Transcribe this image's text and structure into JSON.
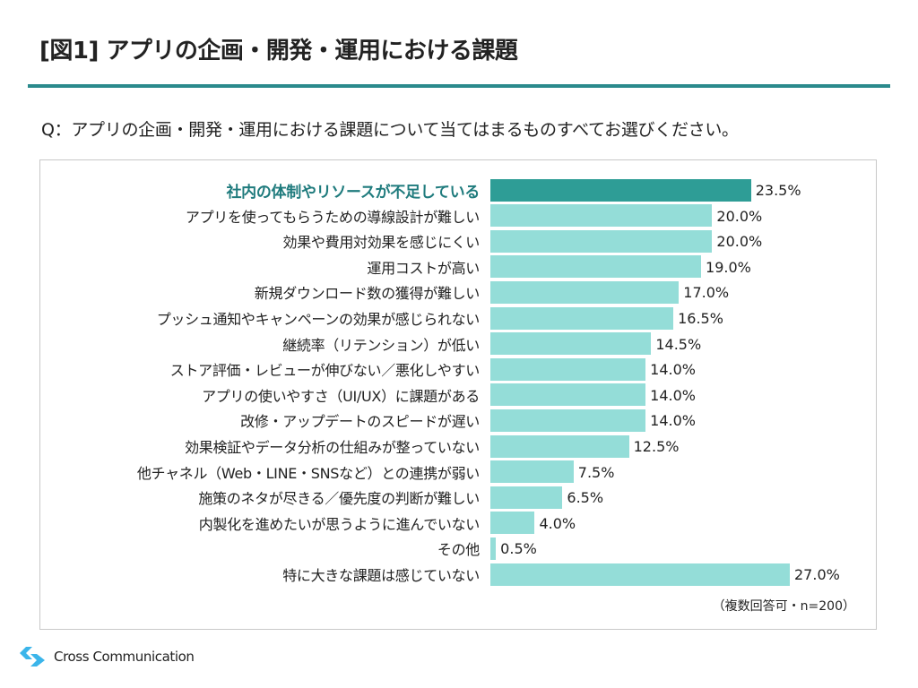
{
  "title": "[図1] アプリの企画・開発・運用における課題",
  "question": "Q：アプリの企画・開発・運用における課題について当てはまるものすべてお選びください。",
  "note": "（複数回答可・n=200）",
  "logo_text": "Cross Communication",
  "colors": {
    "highlight": "#2e9d96",
    "bar": "#94ddd8",
    "highlight_label": "#1f7b7d",
    "rule": "#2a8a8c",
    "logo": "#3bb5ea"
  },
  "chart_data": {
    "type": "bar",
    "orientation": "horizontal",
    "unit": "%",
    "xlim": [
      0,
      27
    ],
    "grid": false,
    "highlight_index": 0,
    "categories": [
      "社内の体制やリソースが不足している",
      "アプリを使ってもらうための導線設計が難しい",
      "効果や費用対効果を感じにくい",
      "運用コストが高い",
      "新規ダウンロード数の獲得が難しい",
      "プッシュ通知やキャンペーンの効果が感じられない",
      "継続率（リテンション）が低い",
      "ストア評価・レビューが伸びない／悪化しやすい",
      "アプリの使いやすさ（UI/UX）に課題がある",
      "改修・アップデートのスピードが遅い",
      "効果検証やデータ分析の仕組みが整っていない",
      "他チャネル（Web・LINE・SNSなど）との連携が弱い",
      "施策のネタが尽きる／優先度の判断が難しい",
      "内製化を進めたいが思うように進んでいない",
      "その他",
      "特に大きな課題は感じていない"
    ],
    "values": [
      23.5,
      20.0,
      20.0,
      19.0,
      17.0,
      16.5,
      14.5,
      14.0,
      14.0,
      14.0,
      12.5,
      7.5,
      6.5,
      4.0,
      0.5,
      27.0
    ],
    "labels": [
      "23.5%",
      "20.0%",
      "20.0%",
      "19.0%",
      "17.0%",
      "16.5%",
      "14.5%",
      "14.0%",
      "14.0%",
      "14.0%",
      "12.5%",
      "7.5%",
      "6.5%",
      "4.0%",
      "0.5%",
      "27.0%"
    ]
  }
}
